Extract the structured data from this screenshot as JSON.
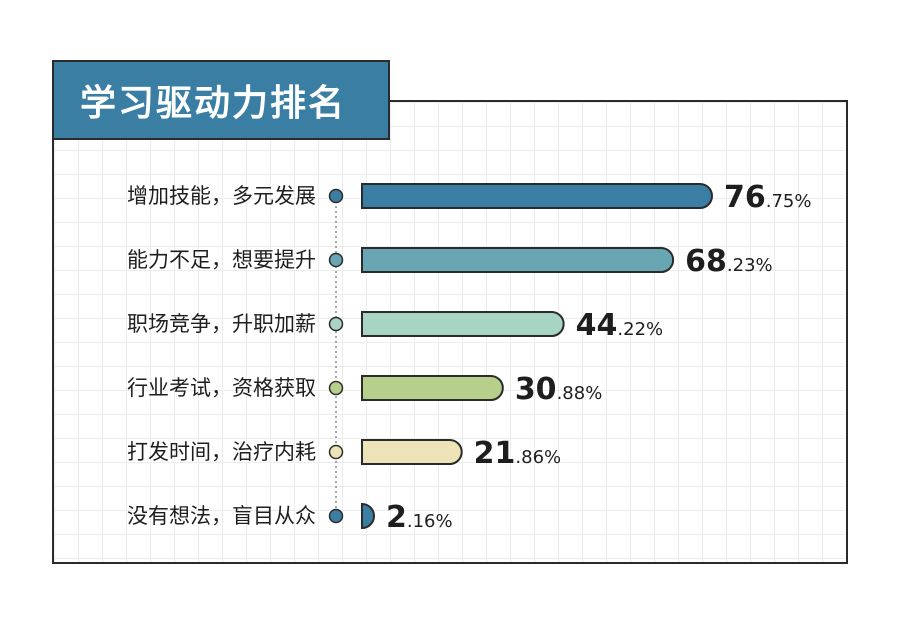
{
  "title": "学习驱动力排名",
  "chart_data": {
    "type": "bar",
    "orientation": "horizontal",
    "title": "学习驱动力排名",
    "categories": [
      "增加技能，多元发展",
      "能力不足，想要提升",
      "职场竞争，升职加薪",
      "行业考试，资格获取",
      "打发时间，治疗内耗",
      "没有想法，盲目从众"
    ],
    "values": [
      76.75,
      68.23,
      44.22,
      30.88,
      21.86,
      2.16
    ],
    "value_labels": [
      {
        "int": "76",
        "dec": ".75%"
      },
      {
        "int": "68",
        "dec": ".23%"
      },
      {
        "int": "44",
        "dec": ".22%"
      },
      {
        "int": "30",
        "dec": ".88%"
      },
      {
        "int": "21",
        "dec": ".86%"
      },
      {
        "int": "2",
        "dec": ".16%"
      }
    ],
    "colors": [
      "#3a7ea3",
      "#68a6b3",
      "#a8d4c3",
      "#b6cf8a",
      "#ece4b8",
      "#3a7ea3"
    ],
    "unit": "%",
    "grid": true,
    "legend": "none"
  }
}
